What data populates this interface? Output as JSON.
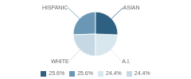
{
  "chart_data": {
    "type": "pie",
    "categories": [
      "HISPANIC",
      "WHITE",
      "A.I.",
      "ASIAN"
    ],
    "values": [
      25.6,
      24.4,
      24.4,
      25.6
    ],
    "colors": [
      "#6a97b5",
      "#c5d8e4",
      "#d8e6ed",
      "#2e6082"
    ],
    "legend_items": [
      {
        "label": "25.6%",
        "color": "#2e6082"
      },
      {
        "label": "25.6%",
        "color": "#6a97b5"
      },
      {
        "label": "24.4%",
        "color": "#d8e6ed"
      },
      {
        "label": "24.4%",
        "color": "#c5d8e4"
      }
    ]
  }
}
